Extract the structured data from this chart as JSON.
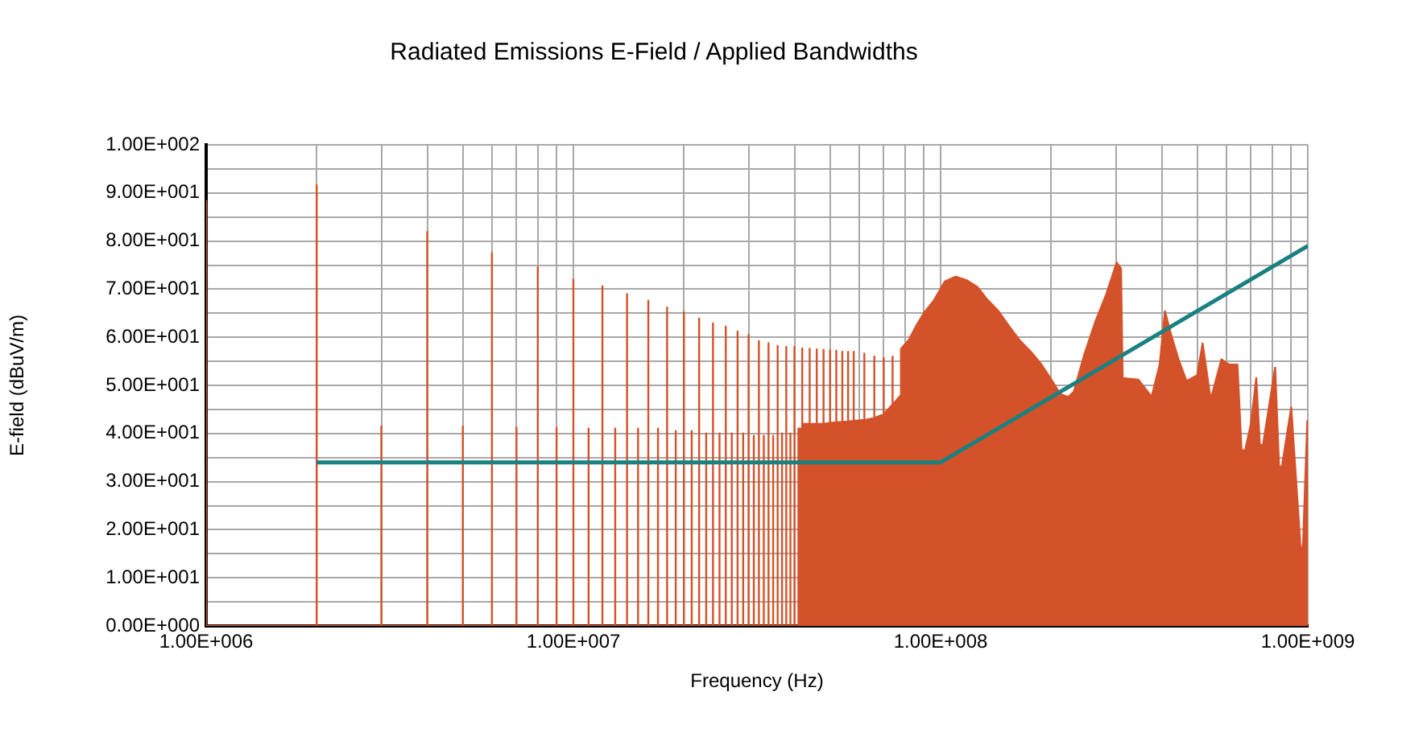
{
  "chart_data": {
    "type": "area",
    "title": "Radiated Emissions E-Field / Applied Bandwidths",
    "xlabel": "Frequency (Hz)",
    "ylabel": "E-field (dBuV/m)",
    "log": "x",
    "grid": true,
    "legend": false,
    "marker": "none",
    "line_style": "solid",
    "xlim": [
      1000000.0,
      1000000000.0
    ],
    "xticks": [
      {
        "value": 1000000.0,
        "label": "1.00E+006"
      },
      {
        "value": 2000000.0,
        "label": null
      },
      {
        "value": 3000000.0,
        "label": null
      },
      {
        "value": 4000000.0,
        "label": null
      },
      {
        "value": 5000000.0,
        "label": null
      },
      {
        "value": 6000000.0,
        "label": null
      },
      {
        "value": 7000000.0,
        "label": null
      },
      {
        "value": 8000000.0,
        "label": null
      },
      {
        "value": 9000000.0,
        "label": null
      },
      {
        "value": 10000000.0,
        "label": "1.00E+007"
      },
      {
        "value": 20000000.0,
        "label": null
      },
      {
        "value": 30000000.0,
        "label": null
      },
      {
        "value": 40000000.0,
        "label": null
      },
      {
        "value": 50000000.0,
        "label": null
      },
      {
        "value": 60000000.0,
        "label": null
      },
      {
        "value": 70000000.0,
        "label": null
      },
      {
        "value": 80000000.0,
        "label": null
      },
      {
        "value": 90000000.0,
        "label": null
      },
      {
        "value": 100000000.0,
        "label": "1.00E+008"
      },
      {
        "value": 200000000.0,
        "label": null
      },
      {
        "value": 300000000.0,
        "label": null
      },
      {
        "value": 400000000.0,
        "label": null
      },
      {
        "value": 500000000.0,
        "label": null
      },
      {
        "value": 600000000.0,
        "label": null
      },
      {
        "value": 700000000.0,
        "label": null
      },
      {
        "value": 800000000.0,
        "label": null
      },
      {
        "value": 900000000.0,
        "label": null
      },
      {
        "value": 1000000000.0,
        "label": "1.00E+009"
      }
    ],
    "ylim": [
      0,
      100
    ],
    "yticks": [
      {
        "value": 0,
        "label": "0.00E+000"
      },
      {
        "value": 5,
        "label": null
      },
      {
        "value": 10,
        "label": "1.00E+001"
      },
      {
        "value": 15,
        "label": null
      },
      {
        "value": 20,
        "label": "2.00E+001"
      },
      {
        "value": 25,
        "label": null
      },
      {
        "value": 30,
        "label": "3.00E+001"
      },
      {
        "value": 35,
        "label": null
      },
      {
        "value": 40,
        "label": "4.00E+001"
      },
      {
        "value": 45,
        "label": null
      },
      {
        "value": 50,
        "label": "5.00E+001"
      },
      {
        "value": 55,
        "label": null
      },
      {
        "value": 60,
        "label": "6.00E+001"
      },
      {
        "value": 65,
        "label": null
      },
      {
        "value": 70,
        "label": "7.00E+001"
      },
      {
        "value": 75,
        "label": null
      },
      {
        "value": 80,
        "label": "8.00E+001"
      },
      {
        "value": 85,
        "label": null
      },
      {
        "value": 90,
        "label": "9.00E+001"
      },
      {
        "value": 95,
        "label": null
      },
      {
        "value": 100,
        "label": "1.00E+002"
      }
    ],
    "series": [
      {
        "color": "#d4522a",
        "x": [
          1000000.0,
          1000000.0,
          1000000.0,
          2000000.0,
          2000000.0,
          2000000.0,
          3000000.0,
          3000000.0,
          3000000.0,
          4000000.0,
          4000000.0,
          4000000.0,
          5000000.0,
          5000000.0,
          5000000.0,
          6000000.0,
          6000000.0,
          6000000.0,
          7000000.0,
          7000000.0,
          7000000.0,
          8000000.0,
          8000000.0,
          8000000.0,
          9000000.0,
          9000000.0,
          9000000.0,
          10000000.0,
          10000000.0,
          10000000.0,
          11000000.0,
          11000000.0,
          11000000.0,
          12000000.0,
          12000000.0,
          12000000.0,
          13000000.0,
          13000000.0,
          13000000.0,
          14000000.0,
          14000000.0,
          14000000.0,
          15000000.0,
          15000000.0,
          15000000.0,
          16000000.0,
          16000000.0,
          16000000.0,
          17000000.0,
          17000000.0,
          17000000.0,
          18000000.0,
          18000000.0,
          18000000.0,
          19000000.0,
          19000000.0,
          19000000.0,
          20000000.0,
          20000000.0,
          20000000.0,
          21000000.0,
          21000000.0,
          21000000.0,
          22000000.0,
          22000000.0,
          22000000.0,
          23000000.0,
          23000000.0,
          23000000.0,
          24000000.0,
          24000000.0,
          24000000.0,
          25000000.0,
          25000000.0,
          25000000.0,
          26000000.0,
          26000000.0,
          26000000.0,
          27000000.0,
          27000000.0,
          27000000.0,
          28000000.0,
          28000000.0,
          28000000.0,
          29000000.0,
          29000000.0,
          29000000.0,
          30000000.0,
          30000000.0,
          30000000.0,
          31000000.0,
          31000000.0,
          31000000.0,
          32000000.0,
          32000000.0,
          32000000.0,
          33000000.0,
          33000000.0,
          33000000.0,
          34000000.0,
          34000000.0,
          34000000.0,
          35000000.0,
          35000000.0,
          35000000.0,
          36000000.0,
          36000000.0,
          36000000.0,
          37000000.0,
          37000000.0,
          37000000.0,
          38000000.0,
          38000000.0,
          38000000.0,
          39000000.0,
          39000000.0,
          39000000.0,
          40000000.0,
          40000000.0,
          40000000.0,
          41000000.0,
          41000000.0,
          42000000.0,
          42000000.0,
          42000000.0,
          44000000.0,
          44000000.0,
          44000000.0,
          46000000.0,
          46000000.0,
          46000000.0,
          48000000.0,
          48000000.0,
          48000000.0,
          50000000.0,
          50000000.0,
          50000000.0,
          52000000.0,
          52000000.0,
          52000000.0,
          54000000.0,
          54000000.0,
          54000000.0,
          56000000.0,
          56000000.0,
          56000000.0,
          58000000.0,
          58000000.0,
          58000000.0,
          62000000.0,
          62000000.0,
          62000000.0,
          66000000.0,
          66000000.0,
          66000000.0,
          70000000.0,
          70000000.0,
          70000000.0,
          74000000.0,
          74000000.0,
          74000000.0,
          78000000.0,
          78000000.0,
          82000000.0,
          86000000.0,
          90000000.0,
          96000000.0,
          102700000.0,
          109900000.0,
          117500000.0,
          125800000.0,
          134500000.0,
          143800000.0,
          153900000.0,
          164500000.0,
          176000000.0,
          188400000.0,
          201400000.0,
          211800000.0,
          222700000.0,
          230600000.0,
          246500000.0,
          263800000.0,
          282100000.0,
          301600000.0,
          309900000.0,
          313100000.0,
          345300000.0,
          375500000.0,
          395000000.0,
          408300000.0,
          422600000.0,
          444500000.0,
          467500000.0,
          499700000.0,
          517100000.0,
          543800000.0,
          581600000.0,
          611500000.0,
          643100000.0,
          660000000.0,
          675000000.0,
          700100000.0,
          723700000.0,
          740000000.0,
          755000000.0,
          814700000.0,
          835000000.0,
          850000000.0,
          901300000.0,
          955000000.0,
          970000000.0,
          997000000.0,
          1000000000.0
        ],
        "values": [
          0,
          88.3,
          0,
          0,
          91.6,
          0,
          0,
          41.5,
          0,
          0,
          81.9,
          0,
          0,
          41.5,
          0,
          0,
          77.5,
          0,
          0,
          41.2,
          0,
          0,
          74.6,
          0,
          0,
          41.2,
          0,
          0,
          72,
          0,
          0,
          41,
          0,
          0,
          70.6,
          0,
          0,
          41,
          0,
          0,
          69,
          0,
          0,
          41,
          0,
          0,
          67.6,
          0,
          0,
          41,
          0,
          0,
          66.2,
          0,
          0,
          40.5,
          0,
          0,
          65.2,
          0,
          0,
          40.5,
          0,
          0,
          63.9,
          0,
          0,
          40,
          0,
          0,
          62.9,
          0,
          0,
          40,
          0,
          0,
          62.2,
          0,
          0,
          40,
          0,
          0,
          61.2,
          0,
          0,
          40,
          0,
          0,
          60.5,
          0,
          0,
          39.5,
          0,
          0,
          59.2,
          0,
          0,
          39.5,
          0,
          0,
          58.8,
          0,
          0,
          39.5,
          0,
          0,
          58.2,
          0,
          0,
          40,
          0,
          0,
          58,
          0,
          0,
          40,
          0,
          0,
          58,
          0,
          0,
          41,
          41,
          57.7,
          42,
          42,
          57.6,
          42,
          42,
          57.5,
          42,
          42,
          57.4,
          42,
          42.2,
          57.3,
          42.2,
          42.3,
          57.2,
          42.3,
          42.4,
          57,
          42.4,
          42.5,
          57,
          42.5,
          42.6,
          57,
          42.6,
          42.8,
          56.6,
          42.8,
          43.2,
          56,
          43.2,
          44,
          55.7,
          44,
          46,
          56,
          46,
          48,
          57.6,
          59.5,
          62.5,
          65,
          67.7,
          71.6,
          72.6,
          71.9,
          70.5,
          67.7,
          65.4,
          62.2,
          59.3,
          57,
          54.3,
          50.9,
          48.2,
          47.6,
          48.7,
          56.5,
          63.2,
          68.8,
          75.5,
          74.3,
          51.5,
          51.2,
          47.6,
          54.3,
          65.4,
          61,
          55.4,
          50.9,
          52.1,
          58.7,
          47,
          55.4,
          54.3,
          54.3,
          36.5,
          36.5,
          42,
          51.5,
          37.6,
          37.6,
          53.7,
          33.1,
          33.1,
          45.4,
          16.4,
          16.4,
          42.6,
          42.6
        ]
      },
      {
        "type": "line",
        "color": "#1a8080",
        "x": [
          2000000.0,
          100000000.0,
          1000000000.0
        ],
        "values": [
          34,
          34,
          79
        ]
      }
    ]
  }
}
